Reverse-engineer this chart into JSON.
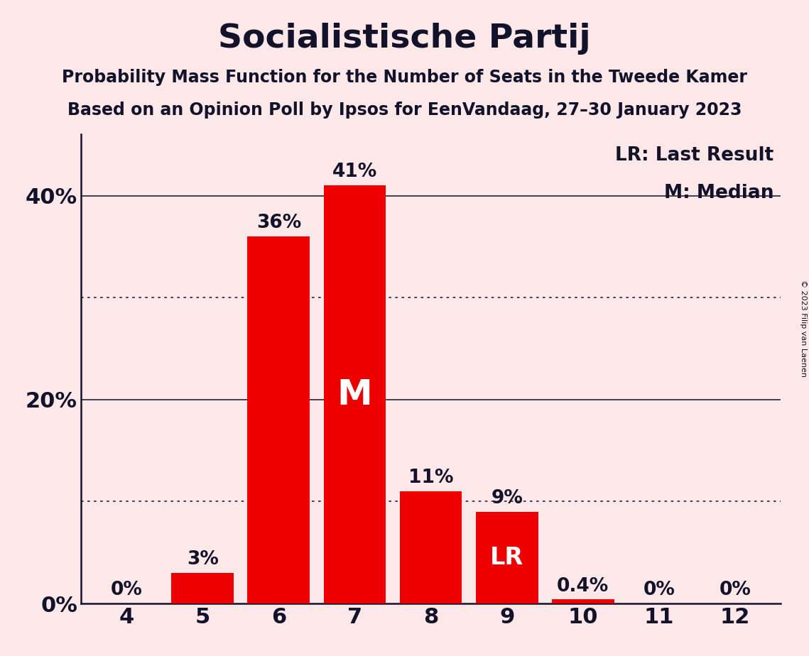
{
  "title": "Socialistische Partij",
  "subtitle1": "Probability Mass Function for the Number of Seats in the Tweede Kamer",
  "subtitle2": "Based on an Opinion Poll by Ipsos for EenVandaag, 27–30 January 2023",
  "copyright": "© 2023 Filip van Laenen",
  "categories": [
    4,
    5,
    6,
    7,
    8,
    9,
    10,
    11,
    12
  ],
  "values": [
    0.0,
    0.03,
    0.36,
    0.41,
    0.11,
    0.09,
    0.004,
    0.0,
    0.0
  ],
  "bar_labels": [
    "0%",
    "3%",
    "36%",
    "41%",
    "11%",
    "9%",
    "0.4%",
    "0%",
    "0%"
  ],
  "bar_color": "#ee0000",
  "median_bar": 7,
  "lr_bar": 9,
  "median_label": "M",
  "lr_label": "LR",
  "legend_lr": "LR: Last Result",
  "legend_m": "M: Median",
  "bg_color": "#fce8e8",
  "text_color": "#12122a",
  "label_color_outside": "#12122a",
  "label_color_inside": "#ffffff",
  "ylim": [
    0,
    0.46
  ],
  "yticks": [
    0.0,
    0.2,
    0.4
  ],
  "ytick_labels": [
    "0%",
    "20%",
    "40%"
  ],
  "dotted_lines": [
    0.1,
    0.3
  ],
  "solid_lines": [
    0.2,
    0.4
  ],
  "title_fontsize": 34,
  "subtitle_fontsize": 17,
  "tick_fontsize": 22,
  "legend_fontsize": 19,
  "bar_label_fontsize": 19,
  "median_label_fontsize": 36,
  "lr_label_fontsize": 24,
  "bar_width": 0.82
}
